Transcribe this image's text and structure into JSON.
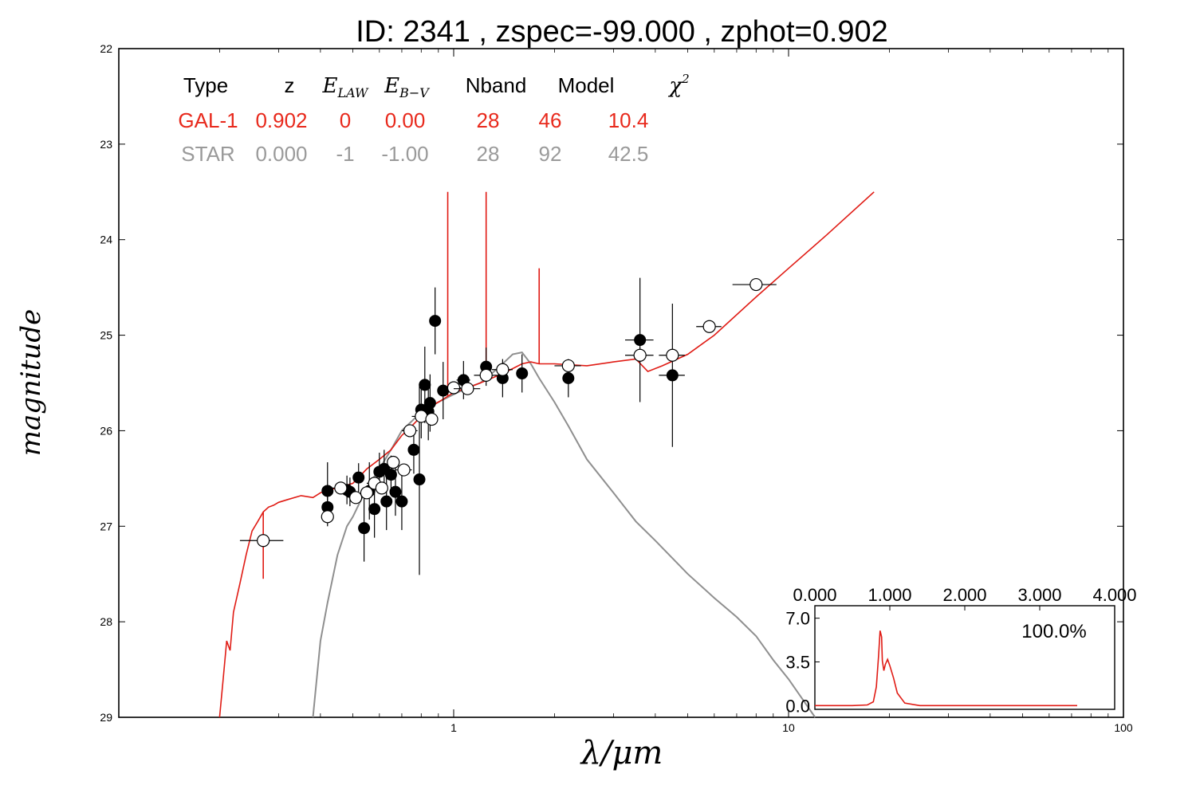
{
  "chart_data": [
    {
      "type": "scatter",
      "title": "ID:  2341  , zspec=-99.000 , zphot=0.902",
      "xlabel": "λ/μm",
      "ylabel": "magnitude",
      "xscale": "log",
      "xlim": [
        0.1,
        100
      ],
      "ylim": [
        29,
        22
      ],
      "y_inverted": true,
      "x_ticks": [
        {
          "value": 1,
          "label": "1"
        },
        {
          "value": 10,
          "label": "10"
        },
        {
          "value": 100,
          "label": "100"
        }
      ],
      "y_ticks": [
        {
          "value": 22,
          "label": "22"
        },
        {
          "value": 23,
          "label": "23"
        },
        {
          "value": 24,
          "label": "24"
        },
        {
          "value": 25,
          "label": "25"
        },
        {
          "value": 26,
          "label": "26"
        },
        {
          "value": 27,
          "label": "27"
        },
        {
          "value": 28,
          "label": "28"
        },
        {
          "value": 29,
          "label": "29"
        }
      ],
      "fit_table": {
        "headers": [
          "Type",
          "z",
          "E_LAW",
          "E_B-V",
          "Nband",
          "Model",
          "χ2"
        ],
        "rows": [
          {
            "cells": [
              "GAL-1",
              "0.902",
              "0",
              "0.00",
              "28",
              "46",
              "10.4"
            ],
            "color": "#e8291c"
          },
          {
            "cells": [
              "STAR",
              "0.000",
              "-1",
              "-1.00",
              "28",
              "92",
              "42.5"
            ],
            "color": "#9a9a9a"
          }
        ]
      },
      "colors": {
        "galaxy_model": "#e01b14",
        "star_model": "#8f8f8f",
        "points": "#000000"
      },
      "series": [
        {
          "kind": "model-line",
          "color": "#e01b14",
          "x": [
            0.2,
            0.205,
            0.21,
            0.215,
            0.22,
            0.23,
            0.24,
            0.25,
            0.26,
            0.27,
            0.28,
            0.29,
            0.3,
            0.32,
            0.35,
            0.38,
            0.4,
            0.42,
            0.45,
            0.5,
            0.55,
            0.6,
            0.65,
            0.7,
            0.75,
            0.8,
            0.85,
            0.9,
            0.95,
            1.0,
            1.1,
            1.2,
            1.3,
            1.4,
            1.5,
            1.6,
            1.7,
            1.8,
            2.0,
            2.5,
            3.0,
            3.5,
            3.8,
            4.2,
            5.0,
            6.0,
            8.0,
            10.0,
            13.0,
            18.0
          ],
          "y": [
            29.0,
            28.6,
            28.2,
            28.3,
            27.9,
            27.6,
            27.3,
            27.05,
            26.95,
            26.85,
            26.8,
            26.78,
            26.75,
            26.72,
            26.68,
            26.7,
            26.65,
            26.62,
            26.6,
            26.55,
            26.4,
            26.3,
            26.2,
            26.05,
            25.95,
            25.85,
            25.75,
            25.7,
            25.65,
            25.6,
            25.55,
            25.5,
            25.45,
            25.4,
            25.35,
            25.3,
            25.28,
            25.3,
            25.3,
            25.32,
            25.28,
            25.25,
            25.38,
            25.32,
            25.2,
            25.0,
            24.6,
            24.3,
            23.95,
            23.5
          ],
          "spikes": [
            {
              "x": 0.96,
              "y": 23.5
            },
            {
              "x": 1.25,
              "y": 23.5
            },
            {
              "x": 1.8,
              "y": 24.3
            },
            {
              "x": 0.27,
              "y": 27.55
            }
          ]
        },
        {
          "kind": "model-line",
          "color": "#8f8f8f",
          "x": [
            0.38,
            0.4,
            0.42,
            0.45,
            0.48,
            0.5,
            0.55,
            0.6,
            0.65,
            0.7,
            0.75,
            0.8,
            0.9,
            1.0,
            1.1,
            1.2,
            1.3,
            1.4,
            1.5,
            1.6,
            1.7,
            1.8,
            2.0,
            2.2,
            2.5,
            3.0,
            3.5,
            4.0,
            5.0,
            6.0,
            7.0,
            8.0,
            9.0,
            10.0,
            12.0
          ],
          "y": [
            29.0,
            28.2,
            27.8,
            27.3,
            27.0,
            26.9,
            26.6,
            26.4,
            26.2,
            26.0,
            25.9,
            25.8,
            25.7,
            25.62,
            25.55,
            25.5,
            25.4,
            25.3,
            25.2,
            25.18,
            25.3,
            25.45,
            25.7,
            25.95,
            26.3,
            26.65,
            26.95,
            27.15,
            27.5,
            27.75,
            27.95,
            28.15,
            28.4,
            28.6,
            29.0
          ]
        },
        {
          "kind": "observed-filled",
          "points": [
            {
              "x": 0.42,
              "y": 26.63,
              "yerr": 0.3,
              "xerr": 0
            },
            {
              "x": 0.42,
              "y": 26.8,
              "yerr": 0.2,
              "xerr": 0
            },
            {
              "x": 0.48,
              "y": 26.62,
              "yerr": 0.15,
              "xerr": 0.02
            },
            {
              "x": 0.49,
              "y": 26.64,
              "yerr": 0.15,
              "xerr": 0
            },
            {
              "x": 0.52,
              "y": 26.49,
              "yerr": 0.15,
              "xerr": 0
            },
            {
              "x": 0.54,
              "y": 27.02,
              "yerr": 0.35,
              "xerr": 0
            },
            {
              "x": 0.56,
              "y": 26.63,
              "yerr": 0.3,
              "xerr": 0
            },
            {
              "x": 0.58,
              "y": 26.82,
              "yerr": 0.3,
              "xerr": 0
            },
            {
              "x": 0.6,
              "y": 26.43,
              "yerr": 0.2,
              "xerr": 0.02
            },
            {
              "x": 0.62,
              "y": 26.4,
              "yerr": 0.2,
              "xerr": 0
            },
            {
              "x": 0.63,
              "y": 26.74,
              "yerr": 0.3,
              "xerr": 0
            },
            {
              "x": 0.65,
              "y": 26.46,
              "yerr": 0.2,
              "xerr": 0
            },
            {
              "x": 0.67,
              "y": 26.64,
              "yerr": 0.25,
              "xerr": 0
            },
            {
              "x": 0.7,
              "y": 26.74,
              "yerr": 0.3,
              "xerr": 0
            },
            {
              "x": 0.76,
              "y": 26.2,
              "yerr": 0.25,
              "xerr": 0
            },
            {
              "x": 0.79,
              "y": 26.51,
              "yerr": 1.0,
              "xerr": 0
            },
            {
              "x": 0.8,
              "y": 25.78,
              "yerr": 0.3,
              "xerr": 0.02
            },
            {
              "x": 0.82,
              "y": 25.52,
              "yerr": 0.4,
              "xerr": 0
            },
            {
              "x": 0.84,
              "y": 25.8,
              "yerr": 0.3,
              "xerr": 0
            },
            {
              "x": 0.85,
              "y": 25.71,
              "yerr": 0.3,
              "xerr": 0
            },
            {
              "x": 0.88,
              "y": 24.85,
              "yerr": 0.35,
              "xerr": 0
            },
            {
              "x": 0.93,
              "y": 25.58,
              "yerr": 0.3,
              "xerr": 0
            },
            {
              "x": 1.07,
              "y": 25.47,
              "yerr": 0.2,
              "xerr": 0.05
            },
            {
              "x": 1.25,
              "y": 25.33,
              "yerr": 0.2,
              "xerr": 0.05
            },
            {
              "x": 1.4,
              "y": 25.45,
              "yerr": 0.2,
              "xerr": 0.05
            },
            {
              "x": 1.6,
              "y": 25.4,
              "yerr": 0.2,
              "xerr": 0.05
            },
            {
              "x": 2.2,
              "y": 25.45,
              "yerr": 0.2,
              "xerr": 0
            },
            {
              "x": 3.6,
              "y": 25.05,
              "yerr": 0.65,
              "xerr": 0.35
            },
            {
              "x": 4.5,
              "y": 25.42,
              "yerr": 0.75,
              "xerr": 0.4
            }
          ]
        },
        {
          "kind": "model-open",
          "points": [
            {
              "x": 0.27,
              "y": 27.15,
              "xerr": 0.04
            },
            {
              "x": 0.42,
              "y": 26.9,
              "xerr": 0
            },
            {
              "x": 0.46,
              "y": 26.6,
              "xerr": 0.03
            },
            {
              "x": 0.51,
              "y": 26.7,
              "xerr": 0
            },
            {
              "x": 0.55,
              "y": 26.65,
              "xerr": 0
            },
            {
              "x": 0.58,
              "y": 26.55,
              "xerr": 0.03
            },
            {
              "x": 0.61,
              "y": 26.6,
              "xerr": 0
            },
            {
              "x": 0.66,
              "y": 26.33,
              "xerr": 0
            },
            {
              "x": 0.71,
              "y": 26.41,
              "xerr": 0.04
            },
            {
              "x": 0.74,
              "y": 26.0,
              "xerr": 0.04
            },
            {
              "x": 0.8,
              "y": 25.85,
              "xerr": 0.05
            },
            {
              "x": 0.86,
              "y": 25.88,
              "xerr": 0
            },
            {
              "x": 1.0,
              "y": 25.55,
              "xerr": 0.05
            },
            {
              "x": 1.1,
              "y": 25.56,
              "xerr": 0.1
            },
            {
              "x": 1.25,
              "y": 25.42,
              "xerr": 0.1
            },
            {
              "x": 1.4,
              "y": 25.36,
              "xerr": 0.1
            },
            {
              "x": 2.2,
              "y": 25.32,
              "xerr": 0.2
            },
            {
              "x": 3.6,
              "y": 25.21,
              "xerr": 0.35
            },
            {
              "x": 4.5,
              "y": 25.21,
              "xerr": 0.4
            },
            {
              "x": 5.8,
              "y": 24.91,
              "xerr": 0.5
            },
            {
              "x": 8.0,
              "y": 24.47,
              "xerr": 1.2
            }
          ]
        }
      ]
    },
    {
      "type": "line",
      "title": "",
      "xlim": [
        0.0,
        4.0
      ],
      "ylim": [
        -0.3,
        8.0
      ],
      "x_ticks": [
        {
          "value": 0.0,
          "label": "0.000"
        },
        {
          "value": 1.0,
          "label": "1.000"
        },
        {
          "value": 2.0,
          "label": "2.000"
        },
        {
          "value": 3.0,
          "label": "3.000"
        },
        {
          "value": 4.0,
          "label": "4.000"
        }
      ],
      "y_ticks": [
        {
          "value": 0.0,
          "label": "0.0"
        },
        {
          "value": 3.5,
          "label": "3.5"
        },
        {
          "value": 7.0,
          "label": "7.0"
        }
      ],
      "annotation": "100.0%",
      "series": [
        {
          "color": "#e01b14",
          "x": [
            0.0,
            0.5,
            0.7,
            0.78,
            0.82,
            0.85,
            0.87,
            0.89,
            0.9,
            0.92,
            0.94,
            0.97,
            1.0,
            1.05,
            1.1,
            1.2,
            1.4,
            2.0,
            3.0,
            3.5
          ],
          "y": [
            0.0,
            0.0,
            0.05,
            0.3,
            1.5,
            4.0,
            6.0,
            5.5,
            3.6,
            2.8,
            3.3,
            3.7,
            3.2,
            2.2,
            1.0,
            0.2,
            0.0,
            0.0,
            0.0,
            0.0
          ]
        }
      ]
    }
  ]
}
